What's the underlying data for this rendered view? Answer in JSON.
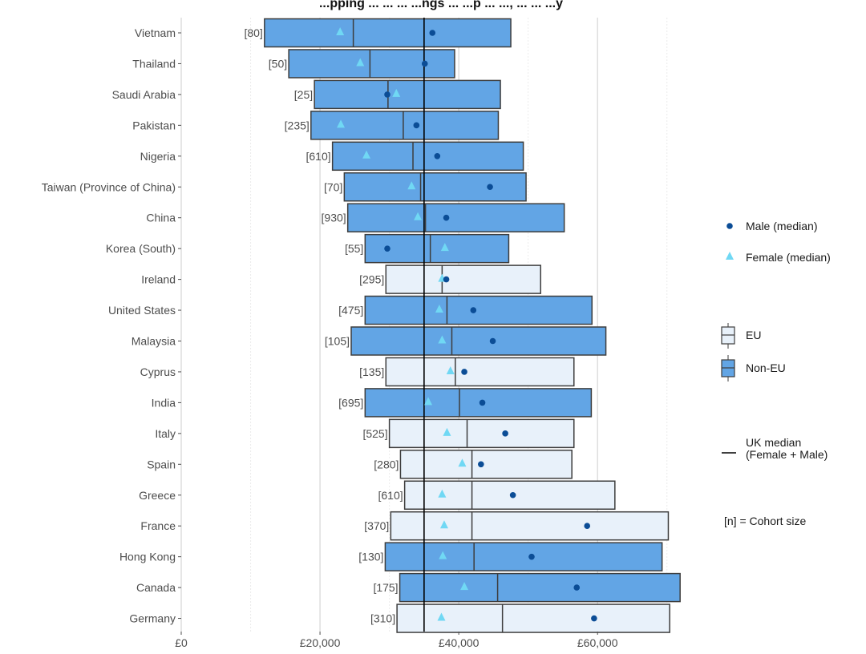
{
  "chart_data": {
    "type": "boxplot",
    "title": "...pping ... ... ... ...ngs ... ...p ... ..., ... ... ...y",
    "xlim": [
      0,
      75000
    ],
    "x_ticks": [
      0,
      20000,
      40000,
      60000
    ],
    "x_tick_labels": [
      "£0",
      "£20,000",
      "£40,000",
      "£60,000"
    ],
    "uk_median": 35000,
    "categories": [
      {
        "name": "Vietnam",
        "group": "Non-EU",
        "n_label": "[80]",
        "q1": 12000,
        "median": 24800,
        "q3": 47500,
        "male_median": 36200,
        "female_median": 22900
      },
      {
        "name": "Thailand",
        "group": "Non-EU",
        "n_label": "[50]",
        "q1": 15500,
        "median": 27200,
        "q3": 39400,
        "male_median": 35100,
        "female_median": 25800
      },
      {
        "name": "Saudi Arabia",
        "group": "Non-EU",
        "n_label": "[25]",
        "q1": 19200,
        "median": 29800,
        "q3": 46000,
        "male_median": 29700,
        "female_median": 31000
      },
      {
        "name": "Pakistan",
        "group": "Non-EU",
        "n_label": "[235]",
        "q1": 18700,
        "median": 32000,
        "q3": 45700,
        "male_median": 33900,
        "female_median": 23000
      },
      {
        "name": "Nigeria",
        "group": "Non-EU",
        "n_label": "[610]",
        "q1": 21800,
        "median": 33400,
        "q3": 49300,
        "male_median": 36900,
        "female_median": 26700
      },
      {
        "name": "Taiwan (Province of China)",
        "group": "Non-EU",
        "n_label": "[70]",
        "q1": 23500,
        "median": 34500,
        "q3": 49700,
        "male_median": 44500,
        "female_median": 33200
      },
      {
        "name": "China",
        "group": "Non-EU",
        "n_label": "[930]",
        "q1": 24000,
        "median": 35200,
        "q3": 55200,
        "male_median": 38200,
        "female_median": 34100
      },
      {
        "name": "Korea (South)",
        "group": "Non-EU",
        "n_label": "[55]",
        "q1": 26500,
        "median": 35900,
        "q3": 47200,
        "male_median": 29700,
        "female_median": 38000
      },
      {
        "name": "Ireland",
        "group": "EU",
        "n_label": "[295]",
        "q1": 29500,
        "median": 37600,
        "q3": 51800,
        "male_median": 38200,
        "female_median": 37600
      },
      {
        "name": "United States",
        "group": "Non-EU",
        "n_label": "[475]",
        "q1": 26500,
        "median": 38300,
        "q3": 59200,
        "male_median": 42100,
        "female_median": 37200
      },
      {
        "name": "Malaysia",
        "group": "Non-EU",
        "n_label": "[105]",
        "q1": 24500,
        "median": 39000,
        "q3": 61200,
        "male_median": 44900,
        "female_median": 37600
      },
      {
        "name": "Cyprus",
        "group": "EU",
        "n_label": "[135]",
        "q1": 29500,
        "median": 39500,
        "q3": 56600,
        "male_median": 40800,
        "female_median": 38800
      },
      {
        "name": "India",
        "group": "Non-EU",
        "n_label": "[695]",
        "q1": 26500,
        "median": 40100,
        "q3": 59100,
        "male_median": 43400,
        "female_median": 35600
      },
      {
        "name": "Italy",
        "group": "EU",
        "n_label": "[525]",
        "q1": 30000,
        "median": 41200,
        "q3": 56600,
        "male_median": 46700,
        "female_median": 38300
      },
      {
        "name": "Spain",
        "group": "EU",
        "n_label": "[280]",
        "q1": 31600,
        "median": 41900,
        "q3": 56300,
        "male_median": 43200,
        "female_median": 40500
      },
      {
        "name": "Greece",
        "group": "EU",
        "n_label": "[610]",
        "q1": 32200,
        "median": 41900,
        "q3": 62500,
        "male_median": 47800,
        "female_median": 37600
      },
      {
        "name": "France",
        "group": "EU",
        "n_label": "[370]",
        "q1": 30200,
        "median": 41900,
        "q3": 70200,
        "male_median": 58500,
        "female_median": 37900
      },
      {
        "name": "Hong Kong",
        "group": "Non-EU",
        "n_label": "[130]",
        "q1": 29400,
        "median": 42200,
        "q3": 69300,
        "male_median": 50500,
        "female_median": 37700
      },
      {
        "name": "Canada",
        "group": "Non-EU",
        "n_label": "[175]",
        "q1": 31500,
        "median": 45600,
        "q3": 71900,
        "male_median": 57000,
        "female_median": 40800
      },
      {
        "name": "Germany",
        "group": "EU",
        "n_label": "[310]",
        "q1": 31100,
        "median": 46300,
        "q3": 70400,
        "male_median": 59500,
        "female_median": 37500
      }
    ],
    "legend": {
      "male": "Male (median)",
      "female": "Female (median)",
      "eu": "EU",
      "non_eu": "Non-EU",
      "uk_line_1": "UK median",
      "uk_line_2": " (Female + Male)",
      "cohort": "[n] = Cohort size"
    },
    "colors": {
      "eu_fill": "#e8f1fa",
      "non_eu_fill": "#62a5e5",
      "box_stroke": "#3d3d3d",
      "male": "#0b4d96",
      "female": "#70d8f4",
      "uk_line": "#000000",
      "grid_major": "#d6d6d6",
      "grid_minor": "#ececec"
    }
  }
}
